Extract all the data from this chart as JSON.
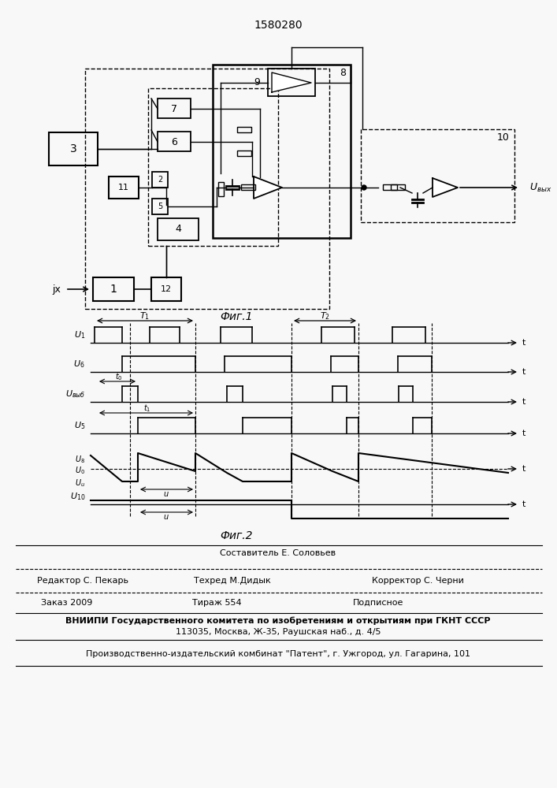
{
  "patent_number": "1580280",
  "fig1_caption": "Фиг.1",
  "fig2_caption": "Фиг.2",
  "bg_color": "#f8f8f8",
  "line_color": "#000000",
  "footer": {
    "line1_center": "Составитель Е. Соловьев",
    "line2_left": "Редактор С. Пекарь",
    "line2_center": "Техред М.Дидык",
    "line2_right": "Корректор С. Черни",
    "line3_left": "Заказ 2009",
    "line3_center": "Тираж 554",
    "line3_right": "Подписное",
    "line4": "ВНИИПИ Государственного комитета по изобретениям и открытиям при ГКНТ СССР",
    "line5": "113035, Москва, Ж-35, Раушская наб., д. 4/5",
    "line6": "Производственно-издательский комбинат \"Патент\", г. Ужгород, ул. Гагарина, 101"
  }
}
